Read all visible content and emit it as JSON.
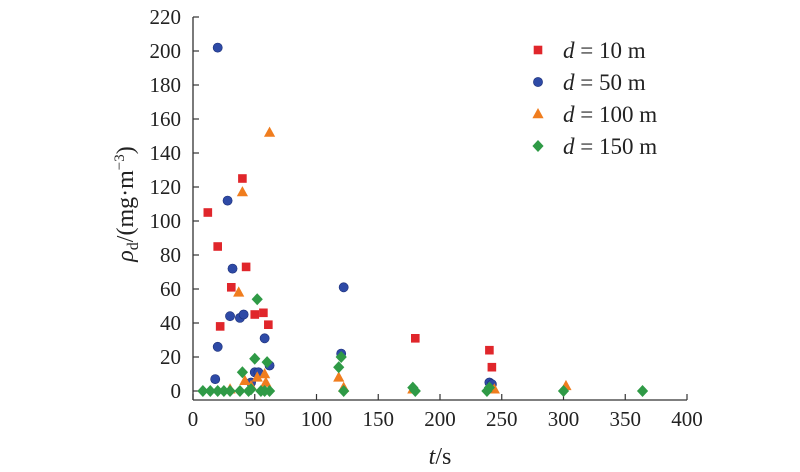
{
  "chart_data": {
    "type": "scatter",
    "title": "",
    "xlabel": {
      "var": "t",
      "unit": "/s"
    },
    "ylabel": {
      "var": "ρ",
      "sub": "d",
      "unit": "/(mg·m",
      "sup": "−3",
      "close": ")"
    },
    "xlim": [
      0,
      400
    ],
    "ylim": [
      0,
      220
    ],
    "xticks": [
      "0",
      "50",
      "100",
      "150",
      "200",
      "250",
      "300",
      "350",
      "400"
    ],
    "yticks": [
      "0",
      "20",
      "40",
      "60",
      "80",
      "100",
      "120",
      "140",
      "160",
      "180",
      "200",
      "220"
    ],
    "grid": false,
    "legend_position": "top-right",
    "series": [
      {
        "name": "d = 10 m",
        "name_var": "d",
        "name_rest": " = 10 m",
        "marker": "square",
        "color": "#e0262b",
        "points": [
          [
            12,
            105
          ],
          [
            20,
            85
          ],
          [
            22,
            38
          ],
          [
            31,
            61
          ],
          [
            40,
            125
          ],
          [
            43,
            73
          ],
          [
            50,
            45
          ],
          [
            57,
            46
          ],
          [
            61,
            39
          ],
          [
            180,
            31
          ],
          [
            240,
            24
          ],
          [
            242,
            14
          ]
        ]
      },
      {
        "name": "d = 50 m",
        "name_var": "d",
        "name_rest": " = 50 m",
        "marker": "circle",
        "color": "#2e4aa6",
        "points": [
          [
            20,
            202
          ],
          [
            18,
            7
          ],
          [
            20,
            26
          ],
          [
            28,
            112
          ],
          [
            30,
            44
          ],
          [
            32,
            72
          ],
          [
            38,
            43
          ],
          [
            41,
            45
          ],
          [
            47,
            5
          ],
          [
            50,
            11
          ],
          [
            53,
            11
          ],
          [
            58,
            31
          ],
          [
            62,
            15
          ],
          [
            120,
            22
          ],
          [
            122,
            61
          ],
          [
            240,
            5
          ],
          [
            242,
            4
          ]
        ]
      },
      {
        "name": "d = 100 m",
        "name_var": "d",
        "name_rest": " = 100 m",
        "marker": "triangle",
        "color": "#f07d1e",
        "points": [
          [
            30,
            1
          ],
          [
            37,
            58
          ],
          [
            40,
            117
          ],
          [
            42,
            6
          ],
          [
            47,
            3
          ],
          [
            52,
            8
          ],
          [
            58,
            10
          ],
          [
            59,
            5
          ],
          [
            62,
            152
          ],
          [
            118,
            8
          ],
          [
            122,
            2
          ],
          [
            178,
            1
          ],
          [
            244,
            1
          ],
          [
            302,
            3
          ]
        ]
      },
      {
        "name": "d = 150 m",
        "name_var": "d",
        "name_rest": " = 150 m",
        "marker": "diamond",
        "color": "#2f9a46",
        "points": [
          [
            8,
            0
          ],
          [
            14,
            0
          ],
          [
            20,
            0
          ],
          [
            25,
            0
          ],
          [
            30,
            0
          ],
          [
            38,
            0
          ],
          [
            40,
            11
          ],
          [
            45,
            0
          ],
          [
            47,
            1
          ],
          [
            50,
            19
          ],
          [
            52,
            54
          ],
          [
            55,
            0
          ],
          [
            58,
            0
          ],
          [
            60,
            17
          ],
          [
            62,
            0
          ],
          [
            118,
            14
          ],
          [
            120,
            20
          ],
          [
            122,
            0
          ],
          [
            178,
            2
          ],
          [
            180,
            0
          ],
          [
            238,
            0
          ],
          [
            240,
            2
          ],
          [
            300,
            0
          ],
          [
            364,
            0
          ]
        ]
      }
    ]
  }
}
